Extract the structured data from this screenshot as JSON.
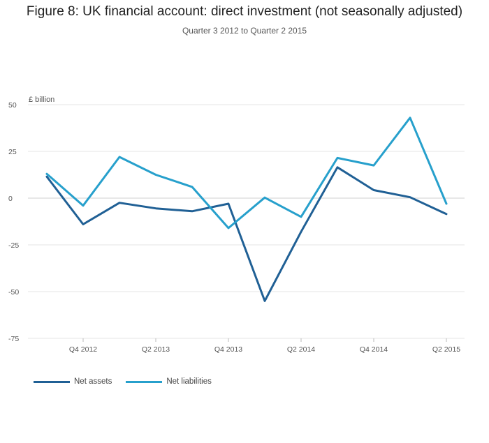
{
  "chart_data": {
    "type": "line",
    "title": "Figure 8: UK financial account: direct investment (not seasonally adjusted)",
    "subtitle": "Quarter 3 2012 to Quarter 2 2015",
    "unit_label": "£ billion",
    "x": [
      "Q3 2012",
      "Q4 2012",
      "Q1 2013",
      "Q2 2013",
      "Q3 2013",
      "Q4 2013",
      "Q1 2014",
      "Q2 2014",
      "Q3 2014",
      "Q4 2014",
      "Q1 2015",
      "Q2 2015"
    ],
    "x_tick_labels": [
      "",
      "Q4 2012",
      "",
      "Q2 2013",
      "",
      "Q4 2013",
      "",
      "Q2 2014",
      "",
      "Q4 2014",
      "",
      "Q2 2015"
    ],
    "y_ticks": [
      50,
      25,
      0,
      -25,
      -50,
      -75
    ],
    "ylim": [
      -75,
      50
    ],
    "grid": true,
    "legend_position": "bottom-left",
    "series": [
      {
        "name": "Net assets",
        "color": "#206095",
        "values": [
          11.5,
          -14,
          -2.5,
          -5.5,
          -7,
          -3,
          -55,
          -18,
          16.5,
          4.3,
          0.5,
          -8.5
        ]
      },
      {
        "name": "Net liabilities",
        "color": "#27a0cc",
        "values": [
          13,
          -4,
          22,
          12.5,
          6,
          -16,
          0.3,
          -10,
          21.5,
          17.5,
          43,
          -3
        ]
      }
    ]
  }
}
